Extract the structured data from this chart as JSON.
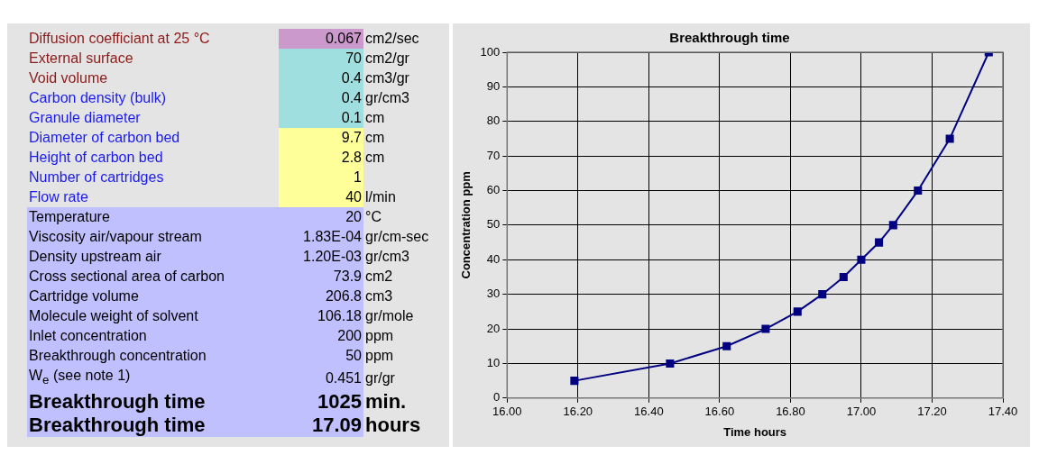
{
  "chart_data": [
    {
      "type": "other",
      "annotations": [
        "Diffusion coefficiant at 25 °C",
        "0.067 cm2/sec",
        "External surface",
        "70 cm2/gr",
        "Void volume",
        "0.4 cm3/gr",
        "Carbon density (bulk)",
        "0.4 gr/cm3",
        "Granule diameter",
        "0.1 cm",
        "Diameter of carbon bed",
        "9.7 cm",
        "Height of carbon bed",
        "2.8 cm",
        "Number of cartridges",
        "1",
        "Flow rate",
        "40 l/min",
        "Temperature",
        "20 °C",
        "Viscosity air/vapour stream",
        "1.83E-04 gr/cm-sec",
        "Density upstream air",
        "1.20E-03 gr/cm3",
        "Cross sectional area of carbon",
        "73.9 cm2",
        "Cartridge volume",
        "206.8 cm3",
        "Molecule weight of solvent",
        "106.18 gr/mole",
        "Inlet concentration",
        "200 ppm",
        "Breakthrough concentration",
        "50 ppm",
        "W$_{e}$ (see note 1)",
        "0.451 gr/gr",
        "Breakthrough time",
        "1025 min.",
        "Breakthrough time",
        "17.09 hours"
      ]
    },
    {
      "type": "line",
      "title": "Breakthrough time",
      "xlabel": "Time hours",
      "ylabel": "Concentration ppm",
      "x": [
        16.19,
        16.46,
        16.62,
        16.73,
        16.82,
        16.89,
        16.95,
        17.0,
        17.05,
        17.09,
        17.16,
        17.25,
        17.36
      ],
      "series": [
        {
          "color": "#000080",
          "values": [
            5,
            10,
            15,
            20,
            25,
            30,
            35,
            40,
            45,
            50,
            60,
            75,
            100
          ]
        }
      ],
      "xlim": [
        16.0,
        17.4
      ],
      "xticks": [
        {
          "value": 16.0,
          "label": "16.00"
        },
        {
          "value": 16.2,
          "label": "16.20"
        },
        {
          "value": 16.4,
          "label": "16.40"
        },
        {
          "value": 16.6,
          "label": "16.60"
        },
        {
          "value": 16.8,
          "label": "16.80"
        },
        {
          "value": 17.0,
          "label": "17.00"
        },
        {
          "value": 17.2,
          "label": "17.20"
        },
        {
          "value": 17.4,
          "label": "17.40"
        }
      ],
      "ylim": [
        0,
        100
      ],
      "yticks": [
        0,
        10,
        20,
        30,
        40,
        50,
        60,
        70,
        80,
        90,
        100
      ],
      "grid": true,
      "marker": "square",
      "line_style": "solid",
      "legend": false
    }
  ]
}
